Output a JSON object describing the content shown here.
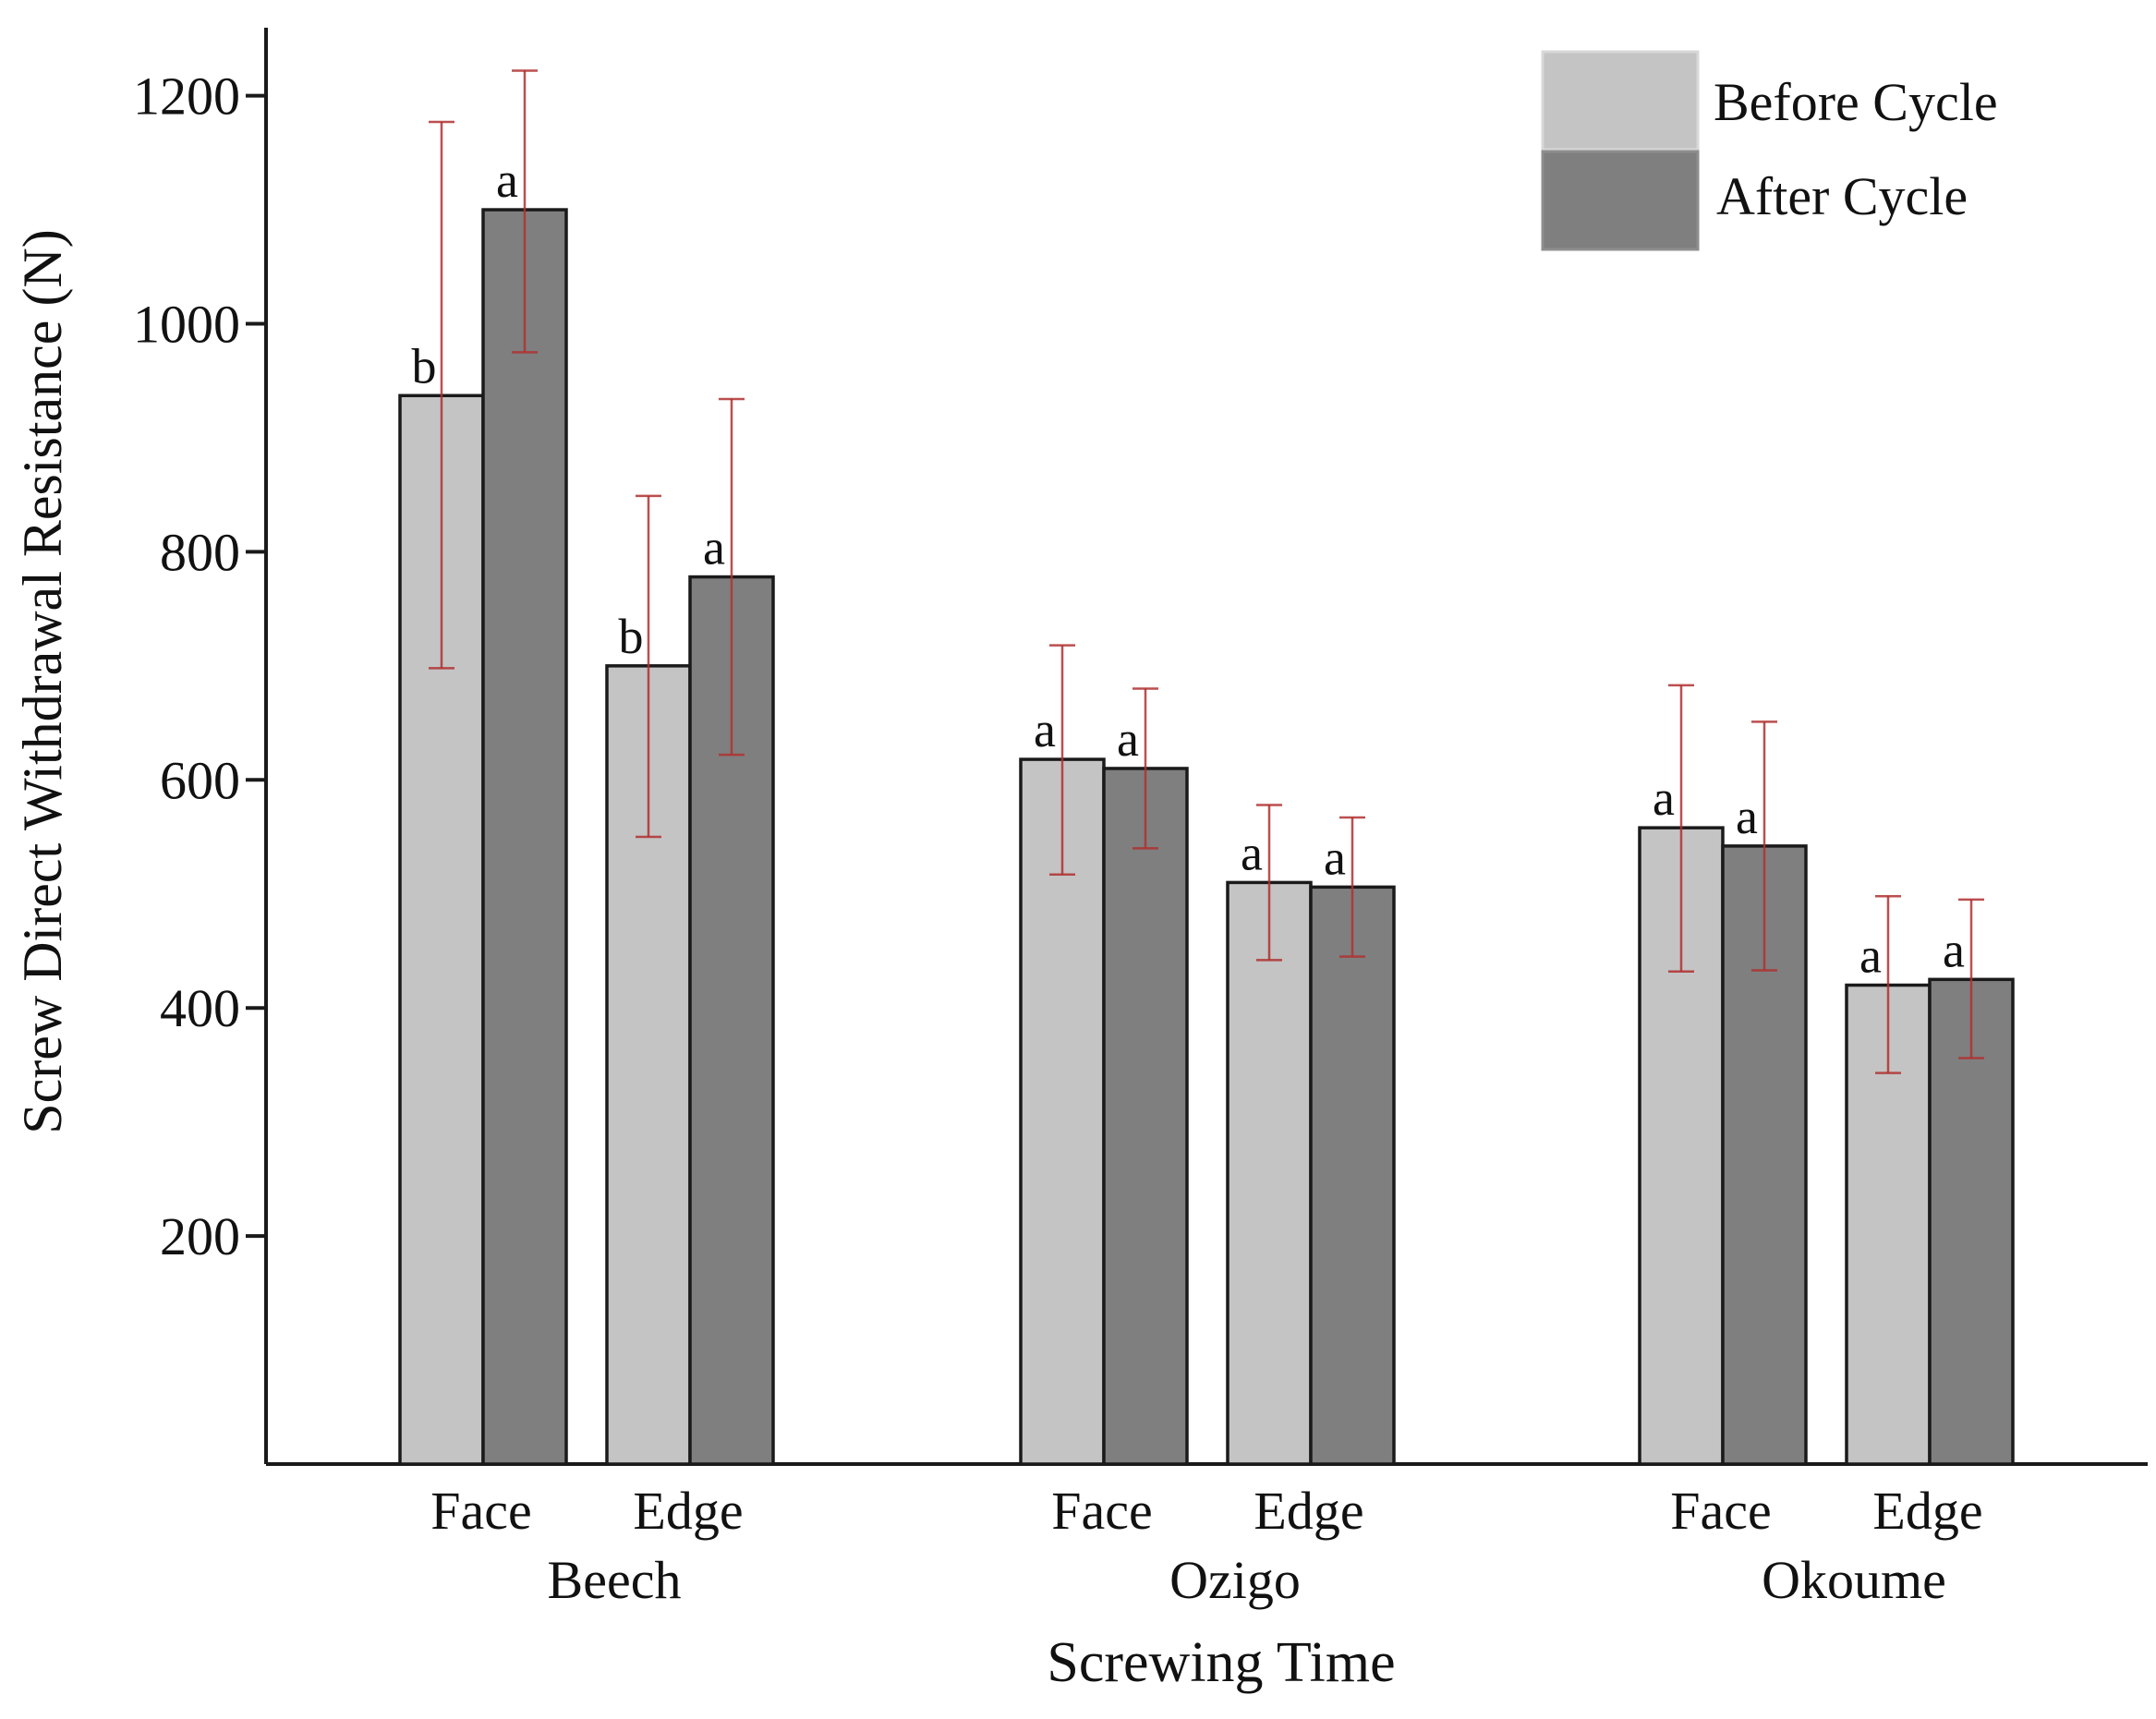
{
  "chart_data": {
    "type": "bar",
    "title": "",
    "xlabel": "Screwing Time",
    "ylabel": "Screw Direct Withdrawal Resistance (N)",
    "ylim": [
      0,
      1250
    ],
    "yticks": [
      200,
      400,
      600,
      800,
      1000,
      1200
    ],
    "grid": false,
    "legend_position": "top-right",
    "species": [
      "Beech",
      "Ozigo",
      "Okoume"
    ],
    "categories": [
      "Face",
      "Edge",
      "Face",
      "Edge",
      "Face",
      "Edge"
    ],
    "series": [
      {
        "name": "Before Cycle",
        "color": "#c4c4c4",
        "values": [
          937,
          700,
          618,
          510,
          558,
          420
        ],
        "error_low": [
          698,
          550,
          517,
          442,
          432,
          343
        ],
        "error_high": [
          1177,
          849,
          718,
          578,
          683,
          498
        ],
        "letters": [
          "b",
          "b",
          "a",
          "a",
          "a",
          "a"
        ]
      },
      {
        "name": "After Cycle",
        "color": "#7f7f7f",
        "values": [
          1100,
          778,
          610,
          506,
          542,
          425
        ],
        "error_low": [
          975,
          622,
          540,
          445,
          433,
          356
        ],
        "error_high": [
          1222,
          934,
          680,
          567,
          651,
          495
        ],
        "letters": [
          "a",
          "a",
          "a",
          "a",
          "a",
          "a"
        ]
      }
    ],
    "error_bar_color": "#b03030",
    "legend": {
      "before_label": "Before Cycle",
      "after_label": "After Cycle"
    }
  }
}
